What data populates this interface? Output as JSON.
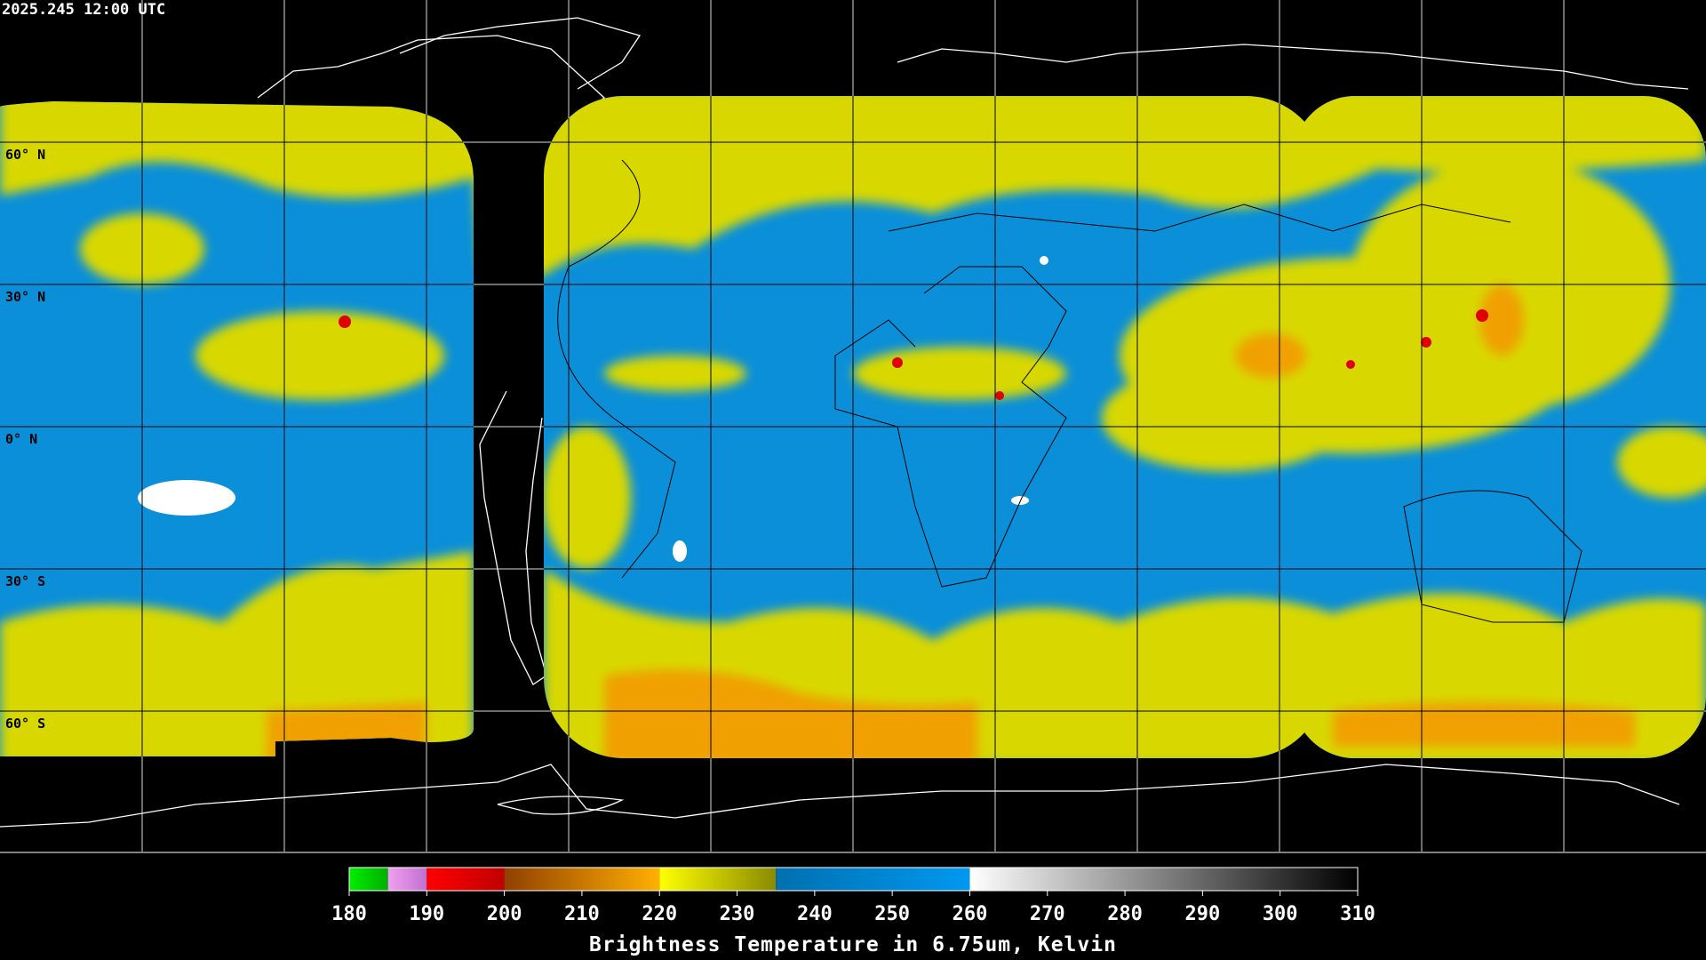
{
  "header": {
    "timestamp": "2025.245 12:00 UTC"
  },
  "map": {
    "latitude_labels": [
      "60° N",
      "30° N",
      "0° N",
      "30° S",
      "60° S"
    ]
  },
  "colorbar": {
    "title": "Brightness Temperature in 6.75um, Kelvin",
    "range": [
      180,
      310
    ],
    "ticks": [
      180,
      190,
      200,
      210,
      220,
      230,
      240,
      250,
      260,
      270,
      280,
      290,
      300,
      310
    ],
    "stops": [
      {
        "from": 180,
        "to": 185,
        "colors": [
          "#00ee00",
          "#00b000"
        ]
      },
      {
        "from": 185,
        "to": 190,
        "colors": [
          "#f0a0f0",
          "#c070d0"
        ]
      },
      {
        "from": 190,
        "to": 200,
        "colors": [
          "#ff0000",
          "#c00000"
        ]
      },
      {
        "from": 200,
        "to": 220,
        "colors": [
          "#904000",
          "#ffb000"
        ]
      },
      {
        "from": 220,
        "to": 235,
        "colors": [
          "#ffff00",
          "#8a8a00"
        ]
      },
      {
        "from": 235,
        "to": 260,
        "colors": [
          "#0070b0",
          "#0098f0"
        ]
      },
      {
        "from": 260,
        "to": 310,
        "colors": [
          "#ffffff",
          "#000000"
        ]
      }
    ]
  }
}
